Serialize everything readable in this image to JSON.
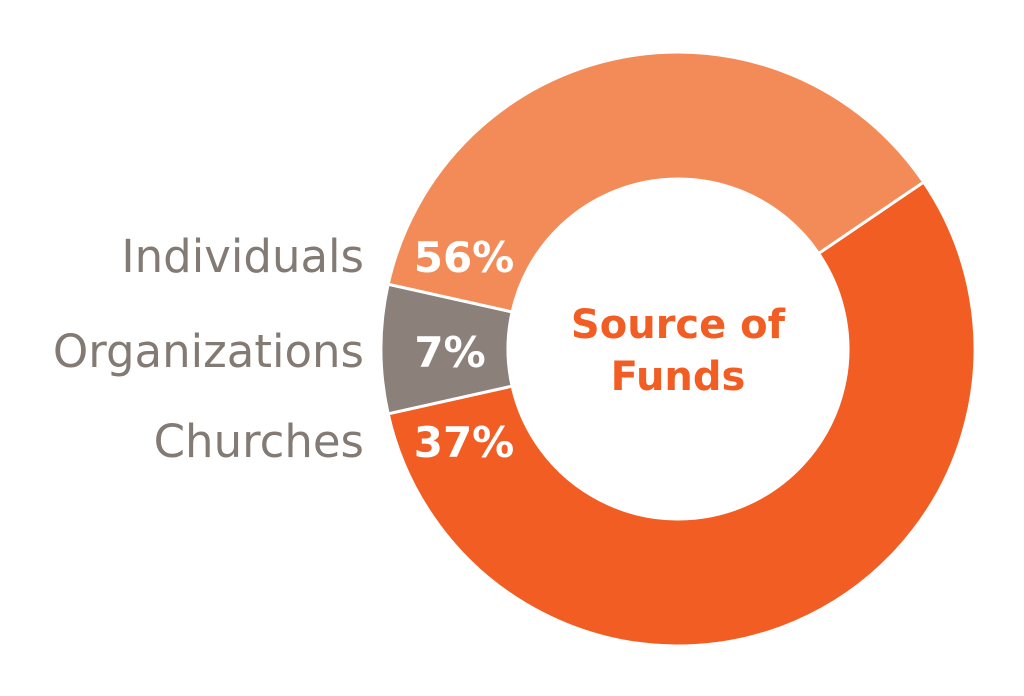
{
  "chart_data": {
    "type": "pie",
    "title": "Source of Funds",
    "title_lines": [
      "Source of",
      "Funds"
    ],
    "categories": [
      "Individuals",
      "Organizations",
      "Churches"
    ],
    "values": [
      56,
      7,
      37
    ],
    "value_labels": [
      "56%",
      "7%",
      "37%"
    ],
    "colors": [
      "#f15d22",
      "#8b817a",
      "#f38b58"
    ],
    "title_color": "#f15d22",
    "label_color": "#837a74",
    "donut": true,
    "legend_position": "left"
  }
}
